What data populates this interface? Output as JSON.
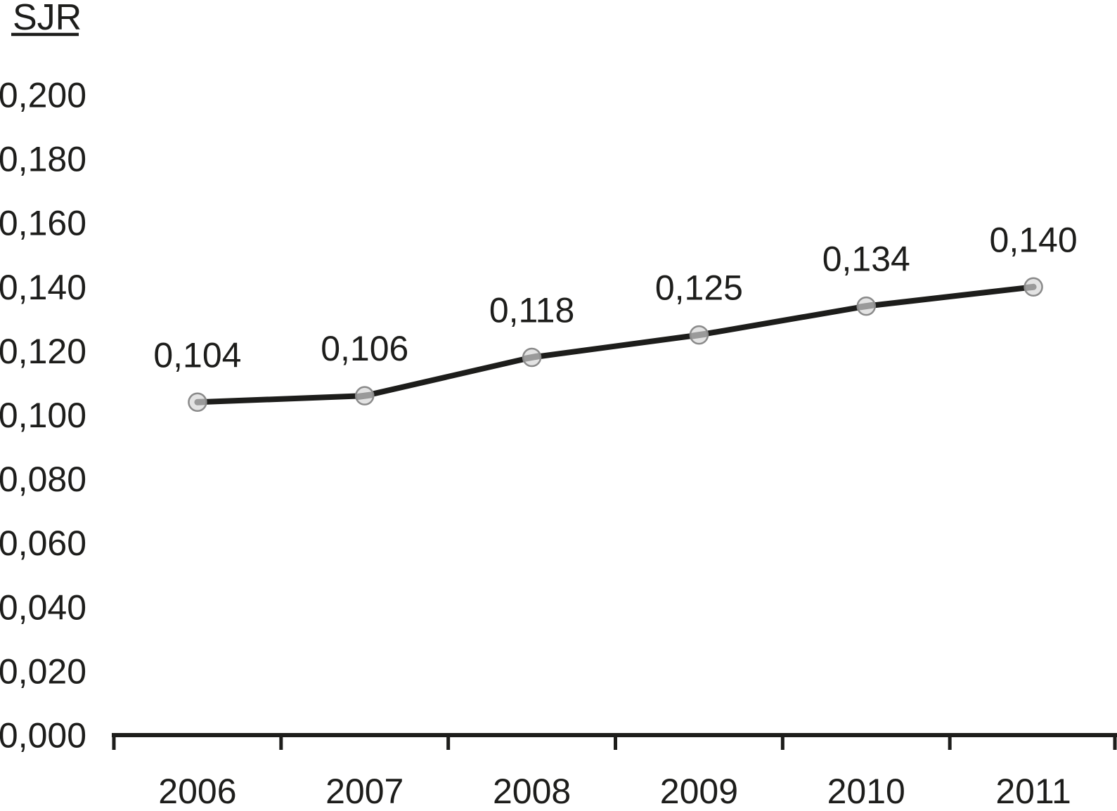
{
  "chart_data": {
    "type": "line",
    "title": "SJR",
    "ylabel": "SJR",
    "xlabel": "",
    "categories": [
      "2006",
      "2007",
      "2008",
      "2009",
      "2010",
      "2011"
    ],
    "series": [
      {
        "name": "SJR",
        "values": [
          0.104,
          0.106,
          0.118,
          0.125,
          0.134,
          0.14
        ]
      }
    ],
    "point_labels": [
      "0,104",
      "0,106",
      "0,118",
      "0,125",
      "0,134",
      "0,140"
    ],
    "y_tick_labels": [
      "0,000",
      "0,020",
      "0,040",
      "0,060",
      "0,080",
      "0,100",
      "0,120",
      "0,140",
      "0,160",
      "0,180",
      "0,200"
    ],
    "ylim": [
      0,
      0.2
    ],
    "y_tick_step": 0.02,
    "decimal_separator": ",",
    "grid": false,
    "legend": "none",
    "colors": {
      "line": "#1d1d1b",
      "axis": "#1d1d1b",
      "text": "#1d1d1b",
      "marker_fill": "#e3e3e3",
      "marker_stroke": "#8a8a8a",
      "background": "#ffffff"
    }
  }
}
